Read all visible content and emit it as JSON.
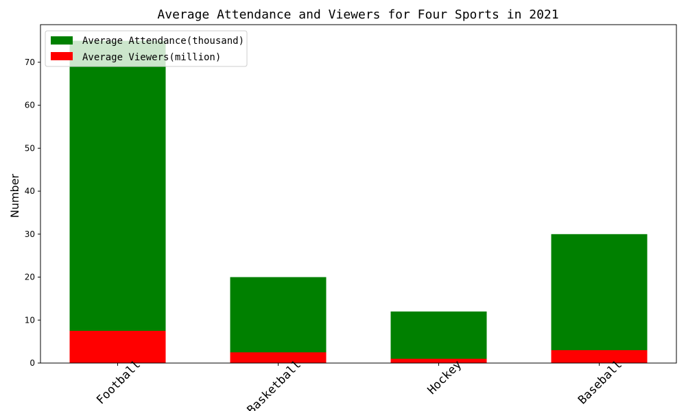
{
  "chart_data": {
    "type": "bar",
    "title": "Average Attendance and Viewers for Four Sports in 2021",
    "xlabel": "",
    "ylabel": "Number",
    "categories": [
      "Football",
      "Basketball",
      "Hockey",
      "Baseball"
    ],
    "series": [
      {
        "name": "Average Attendance(thousand)",
        "values": [
          75,
          20,
          12,
          30
        ],
        "color": "#008000"
      },
      {
        "name": "Average Viewers(million)",
        "values": [
          7.5,
          2.5,
          1,
          3
        ],
        "color": "#ff0000"
      }
    ],
    "overlap": true,
    "ylim": [
      0,
      78.75
    ],
    "yticks": [
      0,
      10,
      20,
      30,
      40,
      50,
      60,
      70
    ],
    "xtick_rotation": 45,
    "grid": false,
    "legend": "top-left"
  }
}
